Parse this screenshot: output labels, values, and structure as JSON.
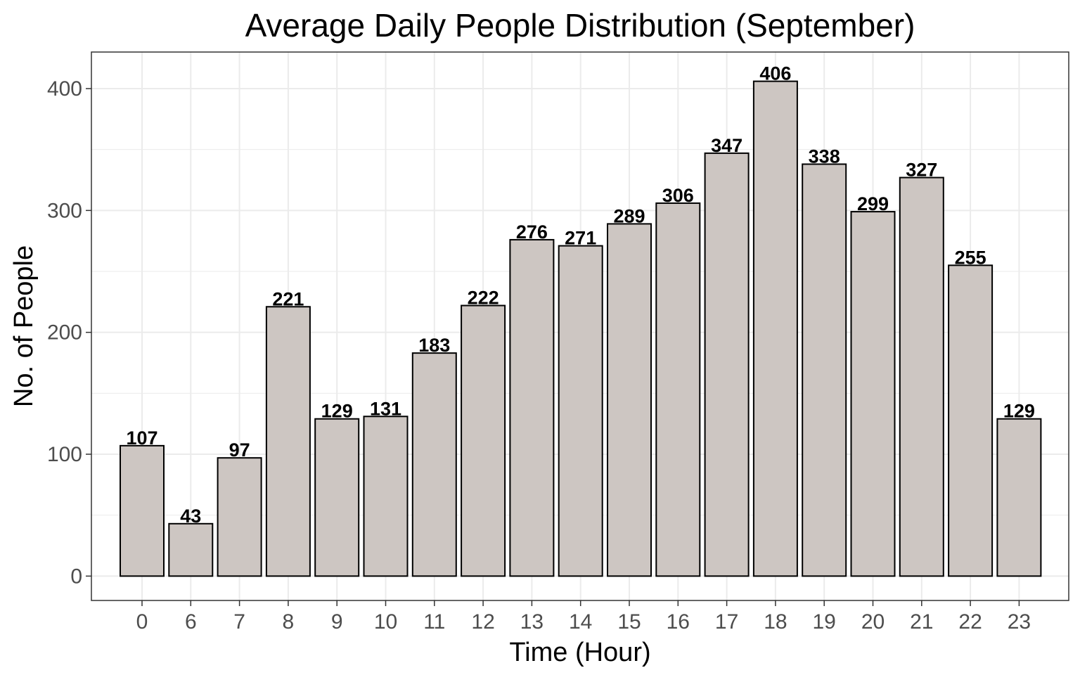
{
  "chart_data": {
    "type": "bar",
    "title": "Average Daily People Distribution (September)",
    "xlabel": "Time (Hour)",
    "ylabel": "No. of People",
    "categories": [
      "0",
      "6",
      "7",
      "8",
      "9",
      "10",
      "11",
      "12",
      "13",
      "14",
      "15",
      "16",
      "17",
      "18",
      "19",
      "20",
      "21",
      "22",
      "23"
    ],
    "values": [
      107,
      43,
      97,
      221,
      129,
      131,
      183,
      222,
      276,
      271,
      289,
      306,
      347,
      406,
      338,
      299,
      327,
      255,
      129
    ],
    "ylim": [
      -20,
      430
    ],
    "yticks": [
      0,
      100,
      200,
      300,
      400
    ],
    "grid": true,
    "colors": {
      "bar_fill": "#cdc6c2",
      "bar_stroke": "#000000",
      "grid": "#ebebeb",
      "panel_border": "#333333",
      "tick_text": "#4d4d4d"
    }
  }
}
